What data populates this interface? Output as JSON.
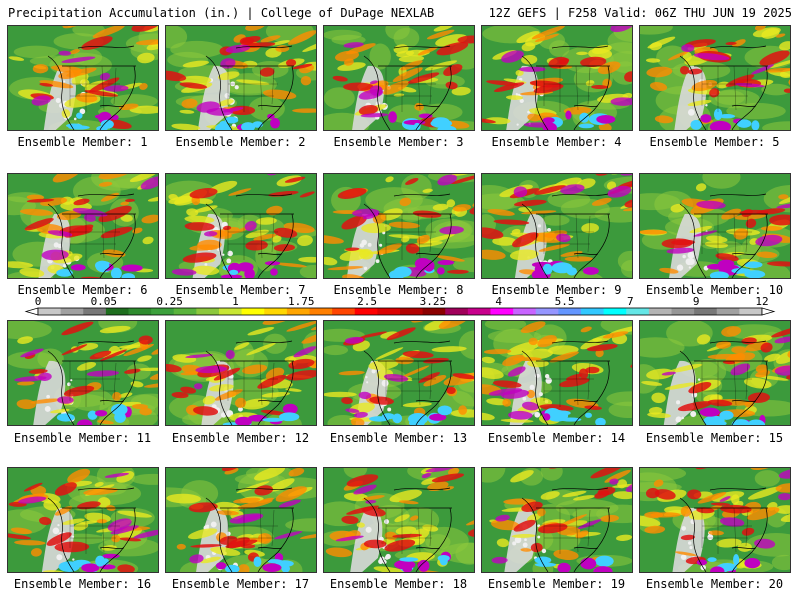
{
  "header": {
    "title": "Precipitation Accumulation (in.) | College of DuPage NEXLAB",
    "run_info": "12Z GEFS | F258 Valid: 06Z THU JUN 19 2025"
  },
  "members": [
    {
      "label": "Ensemble Member: 1"
    },
    {
      "label": "Ensemble Member: 2"
    },
    {
      "label": "Ensemble Member: 3"
    },
    {
      "label": "Ensemble Member: 4"
    },
    {
      "label": "Ensemble Member: 5"
    },
    {
      "label": "Ensemble Member: 6"
    },
    {
      "label": "Ensemble Member: 7"
    },
    {
      "label": "Ensemble Member: 8"
    },
    {
      "label": "Ensemble Member: 9"
    },
    {
      "label": "Ensemble Member: 10"
    },
    {
      "label": "Ensemble Member: 11"
    },
    {
      "label": "Ensemble Member: 12"
    },
    {
      "label": "Ensemble Member: 13"
    },
    {
      "label": "Ensemble Member: 14"
    },
    {
      "label": "Ensemble Member: 15"
    },
    {
      "label": "Ensemble Member: 16"
    },
    {
      "label": "Ensemble Member: 17"
    },
    {
      "label": "Ensemble Member: 18"
    },
    {
      "label": "Ensemble Member: 19"
    },
    {
      "label": "Ensemble Member: 20"
    }
  ],
  "colorbar": {
    "tick_labels": [
      "0",
      "0.05",
      "0.25",
      "1",
      "1.75",
      "2.5",
      "3.25",
      "4",
      "5.5",
      "7",
      "9",
      "12"
    ],
    "colors": [
      "#c8c8c8",
      "#a0a0a0",
      "#787878",
      "#1e6e1e",
      "#2e8b2e",
      "#3ca03c",
      "#5ab43c",
      "#8cc83c",
      "#c8e632",
      "#ffff00",
      "#ffd700",
      "#ffa500",
      "#ff7f00",
      "#ff4500",
      "#ff0000",
      "#dc0000",
      "#b40000",
      "#8b0000",
      "#a0005a",
      "#c8008c",
      "#ff00ff",
      "#c864ff",
      "#9696ff",
      "#6496ff",
      "#32c8ff",
      "#00ffff",
      "#64e6e6",
      "#b4b4b4",
      "#969696",
      "#787878",
      "#a0a0a0",
      "#c8c8c8"
    ]
  },
  "map_colors": {
    "ocean_dry": "#d9d9d9",
    "land_base": "#3c9a3c",
    "light_green": "#8cc83c",
    "yellow": "#e8e820",
    "orange": "#ff8c00",
    "red": "#e01010",
    "magenta": "#c000c0",
    "cyan": "#40d0ff",
    "white": "#f0f0f0",
    "border": "#000000"
  }
}
